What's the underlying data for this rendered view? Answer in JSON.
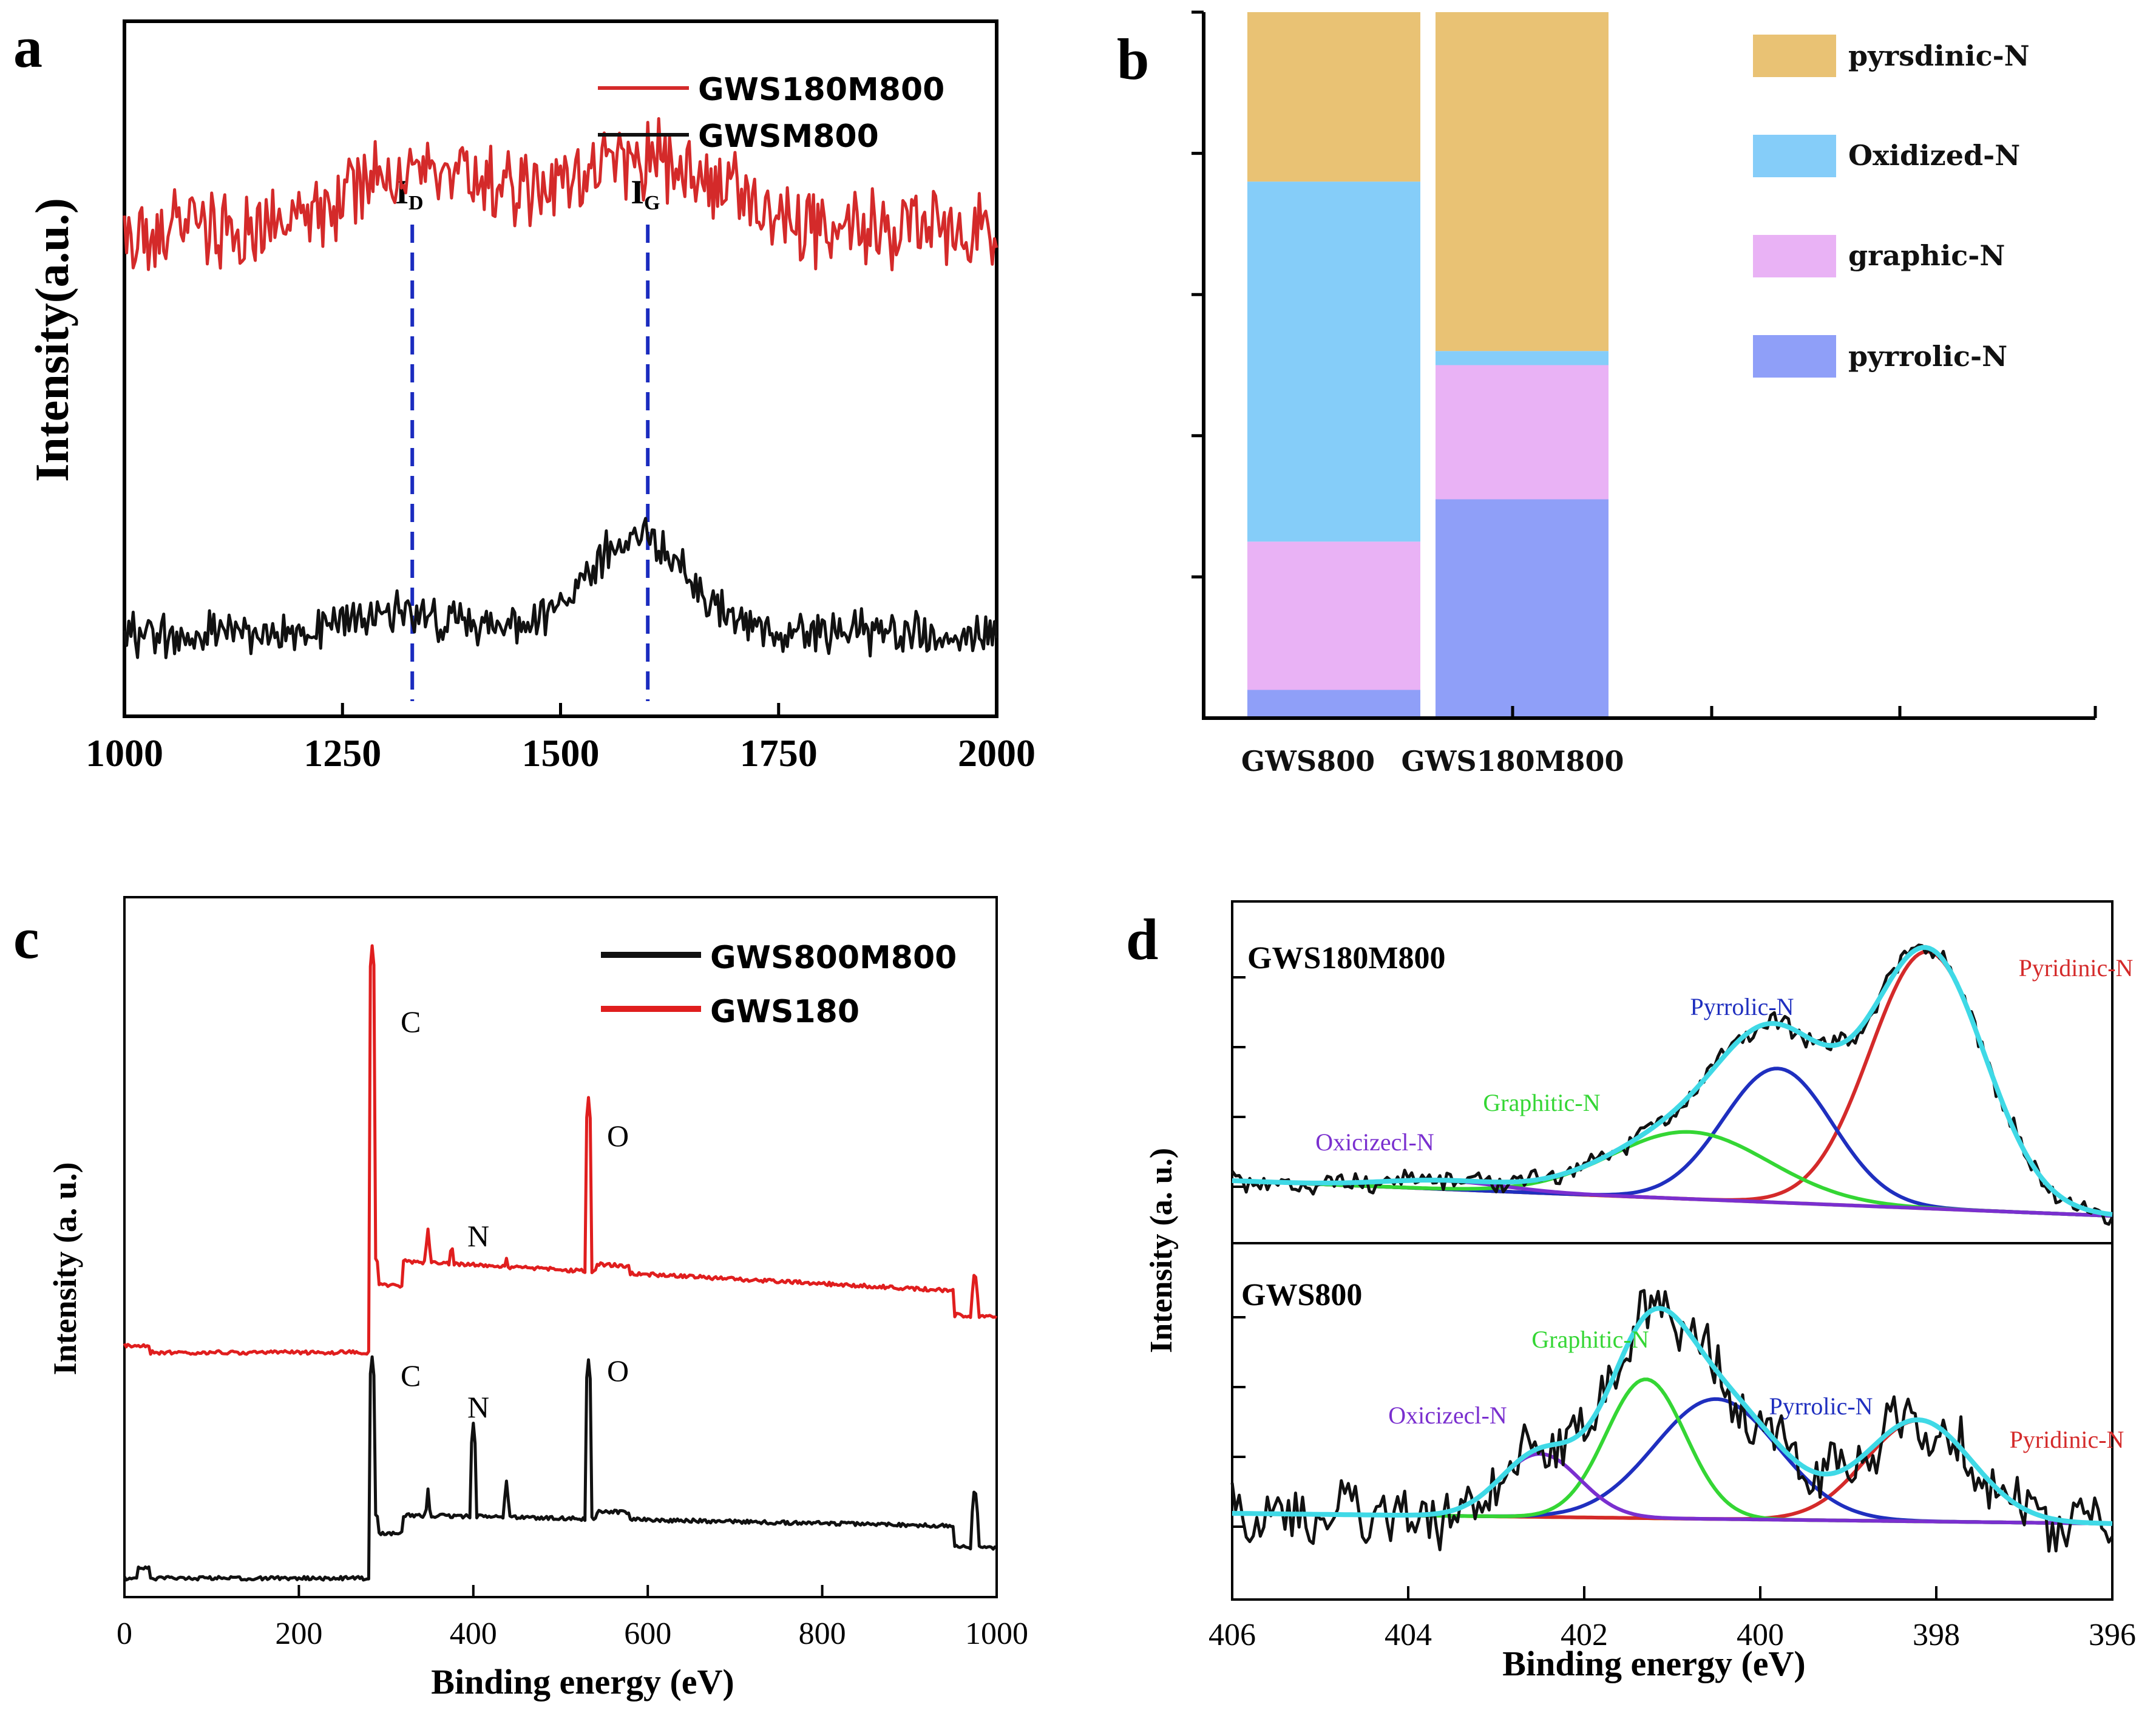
{
  "chart_data": [
    {
      "panel": "a",
      "type": "line",
      "panel_label": "a",
      "ylabel": "Intensity(a.u.)",
      "xlabel": "",
      "xlim": [
        1000,
        2000
      ],
      "x_ticks": [
        "1000",
        "1250",
        "1500",
        "1750",
        "2000"
      ],
      "series": [
        {
          "name": "GWS180M800",
          "color": "#d42a2a",
          "baseline": 0.7,
          "peaks": [
            {
              "x": 1330,
              "h": 0.09,
              "w": 70
            },
            {
              "x": 1590,
              "h": 0.1,
              "w": 90
            }
          ],
          "noise": 0.045
        },
        {
          "name": "GWSM800",
          "color": "#111111",
          "baseline": 0.12,
          "peaks": [
            {
              "x": 1320,
              "h": 0.03,
              "w": 60
            },
            {
              "x": 1590,
              "h": 0.14,
              "w": 55
            }
          ],
          "noise": 0.025
        }
      ],
      "markers": [
        {
          "label": "I",
          "sub": "D",
          "x": 1330
        },
        {
          "label": "I",
          "sub": "G",
          "x": 1600
        }
      ],
      "marker_color": "#1a2bbf"
    },
    {
      "panel": "b",
      "type": "bar",
      "panel_label": "b",
      "categories": [
        "GWS800",
        "GWS180M800"
      ],
      "stack_order": [
        "pyrrolic-N",
        "graphic-N",
        "Oxidized-N",
        "pyrsdinic-N"
      ],
      "series": [
        {
          "name": "pyrsdinic-N",
          "color": "#e9c274",
          "values": [
            24,
            48
          ]
        },
        {
          "name": "Oxidized-N",
          "color": "#85cdf9",
          "values": [
            51,
            2
          ]
        },
        {
          "name": "graphic-N",
          "color": "#e9b2f5",
          "values": [
            21,
            19
          ]
        },
        {
          "name": "pyrrolic-N",
          "color": "#8f9ff8",
          "values": [
            4,
            31
          ]
        }
      ],
      "legend": [
        "pyrsdinic-N",
        "Oxidized-N",
        "graphic-N",
        "pyrrolic-N"
      ],
      "ylim": [
        0,
        100
      ]
    },
    {
      "panel": "c",
      "type": "line",
      "panel_label": "c",
      "ylabel": "Intensity (a. u.)",
      "xlabel": "Binding energy (eV)",
      "xlim": [
        0,
        1000
      ],
      "x_ticks": [
        "0",
        "200",
        "400",
        "600",
        "800",
        "1000"
      ],
      "series": [
        {
          "name": "GWS800M800",
          "color": "#111111"
        },
        {
          "name": "GWS180",
          "color": "#e01e1e"
        }
      ],
      "annotations": [
        {
          "text": "C",
          "series": "GWS180",
          "x": 285
        },
        {
          "text": "N",
          "series": "GWS180",
          "x": 400
        },
        {
          "text": "O",
          "series": "GWS180",
          "x": 532
        },
        {
          "text": "C",
          "series": "GWS800M800",
          "x": 285
        },
        {
          "text": "N",
          "series": "GWS800M800",
          "x": 400
        },
        {
          "text": "O",
          "series": "GWS800M800",
          "x": 532
        }
      ]
    },
    {
      "panel": "d",
      "type": "line",
      "panel_label": "d",
      "ylabel": "Intensity (a. u.)",
      "xlabel": "Binding energy (eV)",
      "xlim": [
        406,
        396
      ],
      "x_ticks": [
        "406",
        "404",
        "402",
        "400",
        "398",
        "396"
      ],
      "subplots": [
        {
          "name": "GWS180M800",
          "components": [
            {
              "name": "Pyridinic-N",
              "color": "#d42a2a",
              "center": 398.1,
              "height": 0.92,
              "sigma": 0.65
            },
            {
              "name": "Pyrrolic-N",
              "color": "#1f2fbf",
              "center": 399.8,
              "height": 0.48,
              "sigma": 0.62
            },
            {
              "name": "Graphitic-N",
              "color": "#34d634",
              "center": 400.8,
              "height": 0.24,
              "sigma": 0.9
            },
            {
              "name": "Oxicizecl-N",
              "color": "#7a2fcf",
              "center": 403.6,
              "height": 0.03,
              "sigma": 0.7
            }
          ]
        },
        {
          "name": "GWS800",
          "components": [
            {
              "name": "Pyridinic-N",
              "color": "#d42a2a",
              "center": 398.2,
              "height": 0.32,
              "sigma": 0.6
            },
            {
              "name": "Pyrrolic-N",
              "color": "#1f2fbf",
              "center": 400.5,
              "height": 0.38,
              "sigma": 0.7
            },
            {
              "name": "Graphitic-N",
              "color": "#34d634",
              "center": 401.3,
              "height": 0.44,
              "sigma": 0.45
            },
            {
              "name": "Oxicizecl-N",
              "color": "#7a2fcf",
              "center": 402.5,
              "height": 0.2,
              "sigma": 0.45
            }
          ]
        }
      ],
      "baseline_color": "#e6e619",
      "envelope_color": "#3fd9e6",
      "raw_color": "#111111"
    }
  ]
}
